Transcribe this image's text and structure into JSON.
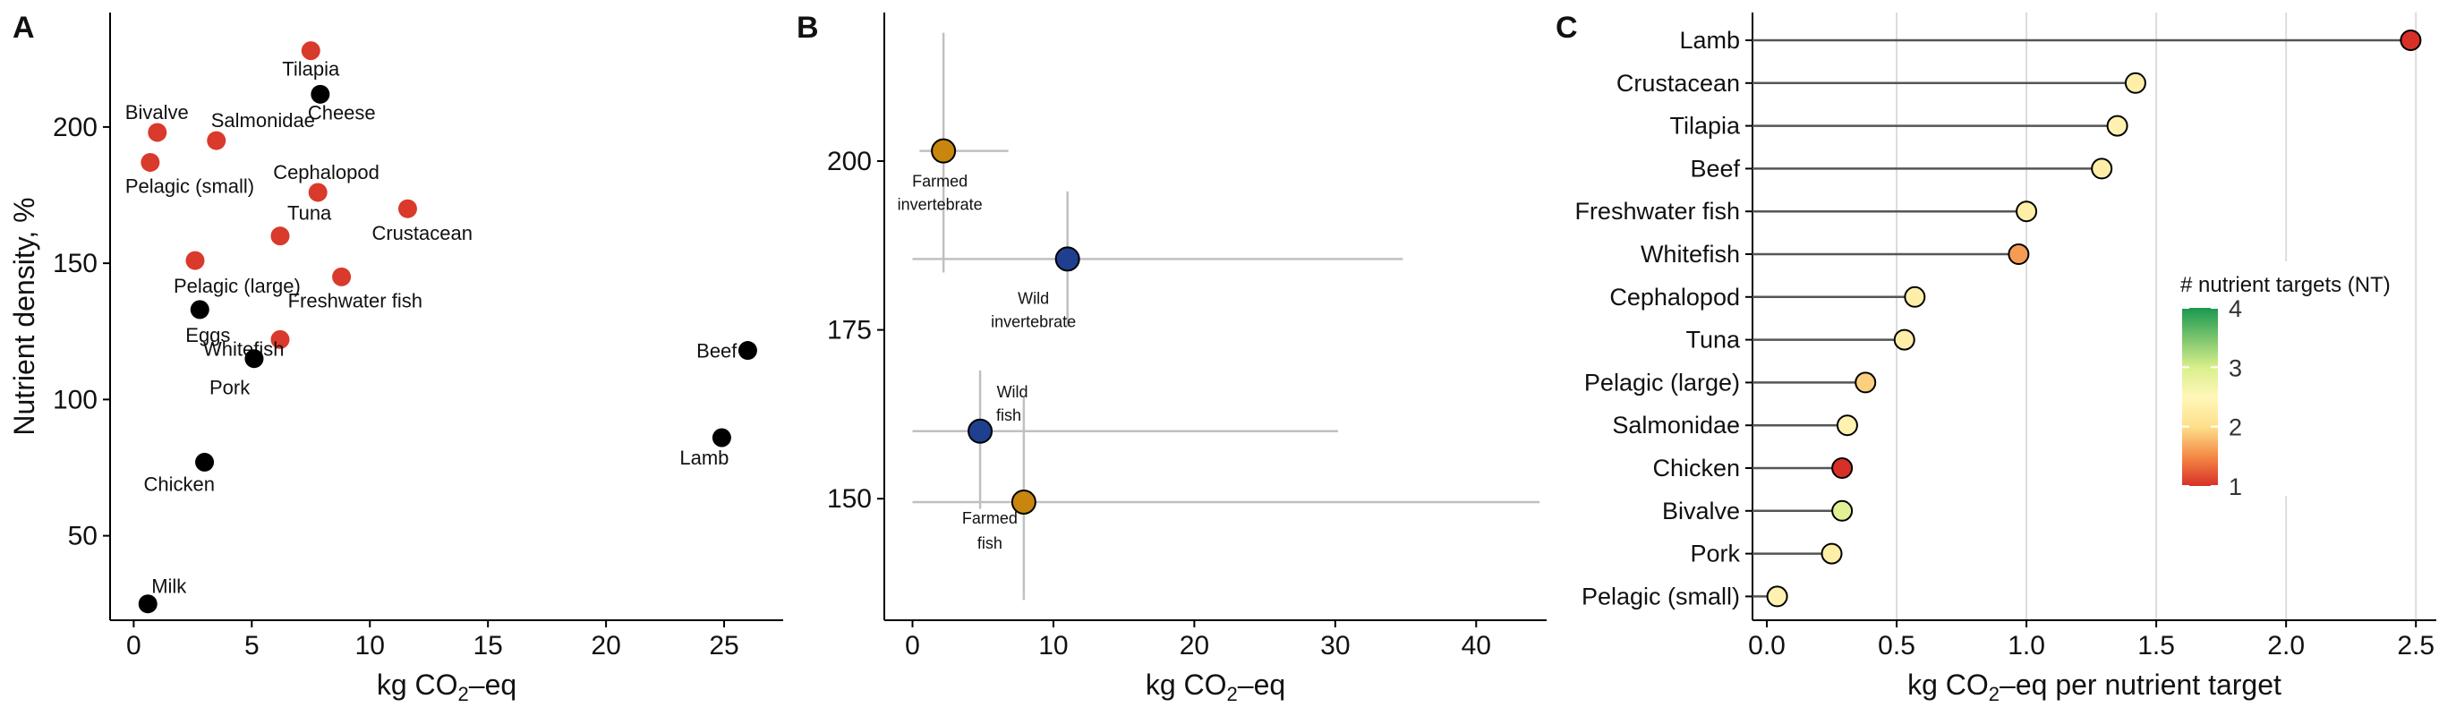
{
  "colors": {
    "animal": "#000000",
    "aquatic": "#d93a2b",
    "farmed": "#c8860f",
    "wild": "#1f3f8f",
    "error": "#c0c0c0",
    "stem": "#555555",
    "grid": "#dcdcdc"
  },
  "chart_data": [
    {
      "panel": "A",
      "type": "scatter",
      "xlabel_main": "kg CO",
      "xlabel_sub": "2",
      "xlabel_tail": "–eq",
      "ylabel": "Nutrient density, %",
      "xlim": [
        -1,
        27.5
      ],
      "ylim": [
        19,
        242
      ],
      "xticks": [
        0,
        5,
        10,
        15,
        20,
        25
      ],
      "yticks": [
        50,
        100,
        150,
        200
      ],
      "points": [
        {
          "label": "Tilapia",
          "x": 7.5,
          "y": 228,
          "group": "aquatic"
        },
        {
          "label": "Cheese",
          "x": 7.9,
          "y": 212,
          "group": "animal"
        },
        {
          "label": "Bivalve",
          "x": 1.0,
          "y": 198,
          "group": "aquatic"
        },
        {
          "label": "Salmonidae",
          "x": 3.5,
          "y": 195,
          "group": "aquatic"
        },
        {
          "label": "Pelagic (small)",
          "x": 0.7,
          "y": 187,
          "group": "aquatic"
        },
        {
          "label": "Cephalopod",
          "x": 7.8,
          "y": 176,
          "group": "aquatic"
        },
        {
          "label": "Crustacean",
          "x": 11.6,
          "y": 170,
          "group": "aquatic"
        },
        {
          "label": "Tuna",
          "x": 6.2,
          "y": 160,
          "group": "aquatic"
        },
        {
          "label": "Pelagic (large)",
          "x": 2.6,
          "y": 151,
          "group": "aquatic"
        },
        {
          "label": "Freshwater fish",
          "x": 8.8,
          "y": 145,
          "group": "aquatic"
        },
        {
          "label": "Eggs",
          "x": 2.8,
          "y": 133,
          "group": "animal"
        },
        {
          "label": "Whitefish",
          "x": 6.2,
          "y": 122,
          "group": "aquatic"
        },
        {
          "label": "Pork",
          "x": 5.1,
          "y": 115,
          "group": "animal"
        },
        {
          "label": "Beef",
          "x": 26.0,
          "y": 118,
          "group": "animal"
        },
        {
          "label": "Lamb",
          "x": 24.9,
          "y": 86,
          "group": "animal"
        },
        {
          "label": "Chicken",
          "x": 3.0,
          "y": 77,
          "group": "animal"
        },
        {
          "label": "Milk",
          "x": 0.6,
          "y": 25,
          "group": "animal"
        }
      ]
    },
    {
      "panel": "B",
      "type": "scatter",
      "xlabel_main": "kg CO",
      "xlabel_sub": "2",
      "xlabel_tail": "–eq",
      "xlim": [
        -2,
        45
      ],
      "ylim": [
        132,
        222
      ],
      "xticks": [
        0,
        10,
        20,
        30,
        40
      ],
      "yticks": [
        150,
        175,
        200
      ],
      "points": [
        {
          "label_lines": [
            "Farmed",
            "invertebrate"
          ],
          "x": 2.2,
          "y": 201.5,
          "xerr": [
            0.5,
            6.8
          ],
          "yerr": [
            183.5,
            219
          ],
          "group": "farmed"
        },
        {
          "label_lines": [
            "Wild",
            "invertebrate"
          ],
          "x": 11.0,
          "y": 185.5,
          "xerr": [
            0,
            34.8
          ],
          "yerr": [
            175.5,
            195.5
          ],
          "group": "wild"
        },
        {
          "label_lines": [
            "Wild",
            "fish"
          ],
          "x": 4.8,
          "y": 160,
          "xerr": [
            0,
            30.2
          ],
          "yerr": [
            148.5,
            169
          ],
          "group": "wild"
        },
        {
          "label_lines": [
            "Farmed",
            "fish"
          ],
          "x": 7.9,
          "y": 149.5,
          "xerr": [
            0,
            44.5
          ],
          "yerr": [
            135,
            165
          ],
          "group": "farmed"
        }
      ]
    },
    {
      "panel": "C",
      "type": "lollipop",
      "xlabel_main": "kg CO",
      "xlabel_sub": "2",
      "xlabel_tail": "–eq per nutrient target",
      "xlim": [
        0,
        2.52
      ],
      "xticks": [
        0.0,
        0.5,
        1.0,
        1.5,
        2.0,
        2.5
      ],
      "xtick_labels": [
        "0.0",
        "0.5",
        "1.0",
        "1.5",
        "2.0",
        "2.5"
      ],
      "categories": [
        "Lamb",
        "Crustacean",
        "Tilapia",
        "Beef",
        "Freshwater fish",
        "Whitefish",
        "Cephalopod",
        "Tuna",
        "Pelagic (large)",
        "Salmonidae",
        "Chicken",
        "Bivalve",
        "Pork",
        "Pelagic (small)"
      ],
      "values": [
        2.48,
        1.42,
        1.35,
        1.29,
        1.0,
        0.97,
        0.57,
        0.53,
        0.38,
        0.31,
        0.29,
        0.29,
        0.25,
        0.04
      ],
      "nutrient_targets": [
        1.0,
        2.3,
        2.4,
        2.3,
        2.3,
        1.6,
        2.3,
        2.3,
        1.9,
        2.4,
        1.0,
        2.9,
        2.3,
        2.4
      ],
      "legend": {
        "title": "# nutrient targets (NT)",
        "min": 1,
        "max": 4,
        "ticks": [
          "1",
          "2",
          "3",
          "4"
        ],
        "position": "right"
      }
    }
  ]
}
